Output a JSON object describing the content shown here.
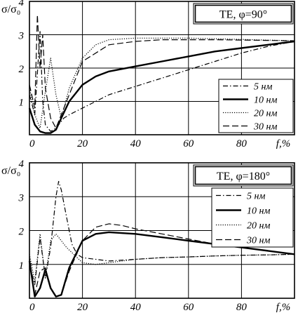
{
  "chart_data": [
    {
      "type": "line",
      "title": "TE, φ=90°",
      "ylabel": "σ/σ₀",
      "xlabel": "f,%",
      "xlim": [
        0,
        100
      ],
      "ylim": [
        0,
        4
      ],
      "x_ticks": [
        "0",
        "20",
        "40",
        "60",
        "80"
      ],
      "y_ticks": [
        "1",
        "2",
        "3",
        "4"
      ],
      "grid": true,
      "legend_position": "lower-right",
      "series": [
        {
          "name": "5 нм",
          "style": "dash-dot",
          "x": [
            0,
            2,
            4,
            5,
            6,
            8,
            10,
            11,
            13,
            15,
            20,
            25,
            30,
            40,
            50,
            60,
            70,
            80,
            90,
            100
          ],
          "y": [
            1.2,
            0.6,
            3.1,
            1.0,
            0.3,
            0.1,
            0.2,
            0.3,
            0.5,
            0.6,
            0.8,
            1.0,
            1.2,
            1.45,
            1.7,
            1.95,
            2.2,
            2.45,
            2.65,
            2.8
          ]
        },
        {
          "name": "10 нм",
          "style": "solid",
          "x": [
            0,
            2,
            4,
            6,
            8,
            10,
            12,
            15,
            20,
            25,
            30,
            40,
            50,
            60,
            70,
            80,
            90,
            100
          ],
          "y": [
            0.8,
            0.3,
            0.1,
            0.05,
            0.05,
            0.15,
            0.5,
            1.0,
            1.5,
            1.75,
            1.9,
            2.05,
            2.2,
            2.35,
            2.5,
            2.6,
            2.7,
            2.8
          ]
        },
        {
          "name": "20 нм",
          "style": "dotted",
          "x": [
            0,
            2,
            4,
            6,
            8,
            10,
            12,
            15,
            20,
            25,
            30,
            40,
            50,
            60,
            70,
            80,
            90,
            100
          ],
          "y": [
            1.4,
            0.6,
            0.2,
            1.3,
            2.3,
            1.2,
            0.5,
            1.4,
            2.3,
            2.7,
            2.85,
            2.9,
            2.9,
            2.9,
            2.88,
            2.86,
            2.84,
            2.82
          ]
        },
        {
          "name": "30 нм",
          "style": "dashed",
          "x": [
            0,
            2,
            3,
            4,
            5,
            6,
            8,
            10,
            15,
            20,
            30,
            40,
            50,
            60,
            70,
            80,
            90,
            100
          ],
          "y": [
            1.5,
            0.8,
            3.6,
            2.0,
            3.0,
            1.4,
            0.5,
            0.2,
            1.2,
            2.2,
            2.7,
            2.8,
            2.85,
            2.85,
            2.85,
            2.84,
            2.83,
            2.82
          ]
        }
      ]
    },
    {
      "type": "line",
      "title": "TE, φ=180°",
      "ylabel": "σ/σ₀",
      "xlabel": "f,%",
      "xlim": [
        0,
        100
      ],
      "ylim": [
        0,
        4
      ],
      "x_ticks": [
        "0",
        "20",
        "40",
        "60",
        "80"
      ],
      "y_ticks": [
        "1",
        "2",
        "3",
        "4"
      ],
      "grid": true,
      "legend_position": "upper-right",
      "series": [
        {
          "name": "5 нм",
          "style": "dash-dot",
          "x": [
            0,
            2,
            4,
            6,
            8,
            10,
            11,
            12,
            14,
            16,
            18,
            20,
            25,
            30,
            40,
            50,
            60,
            70,
            80,
            90,
            100
          ],
          "y": [
            1.0,
            0.4,
            1.8,
            0.6,
            1.5,
            3.0,
            3.45,
            3.2,
            2.4,
            1.6,
            1.3,
            1.2,
            1.15,
            1.1,
            1.15,
            1.2,
            1.22,
            1.25,
            1.27,
            1.28,
            1.3
          ]
        },
        {
          "name": "10 нм",
          "style": "solid",
          "x": [
            0,
            2,
            4,
            6,
            8,
            10,
            12,
            15,
            20,
            25,
            30,
            40,
            50,
            60,
            70,
            80,
            90,
            100
          ],
          "y": [
            1.1,
            0.05,
            0.3,
            0.85,
            0.3,
            0.05,
            0.1,
            0.9,
            1.7,
            1.9,
            1.95,
            1.9,
            1.8,
            1.7,
            1.6,
            1.5,
            1.4,
            1.3
          ]
        },
        {
          "name": "20 нм",
          "style": "dotted",
          "x": [
            0,
            2,
            4,
            6,
            8,
            10,
            14,
            18,
            20,
            25,
            30,
            40,
            50,
            60,
            70,
            80,
            90,
            100
          ],
          "y": [
            1.3,
            0.5,
            1.9,
            0.6,
            1.7,
            1.9,
            1.5,
            1.2,
            1.05,
            1.0,
            1.05,
            1.15,
            1.2,
            1.22,
            1.25,
            1.27,
            1.28,
            1.3
          ]
        },
        {
          "name": "30 нм",
          "style": "dashed",
          "x": [
            0,
            1,
            2,
            4,
            6,
            8,
            10,
            12,
            15,
            20,
            25,
            30,
            35,
            40,
            50,
            60,
            70,
            80,
            90,
            100
          ],
          "y": [
            1.2,
            0.6,
            0.1,
            0.8,
            0.9,
            0.3,
            0.05,
            0.1,
            0.8,
            1.7,
            2.1,
            2.2,
            2.15,
            2.05,
            1.9,
            1.75,
            1.6,
            1.5,
            1.4,
            1.3
          ]
        }
      ]
    }
  ]
}
